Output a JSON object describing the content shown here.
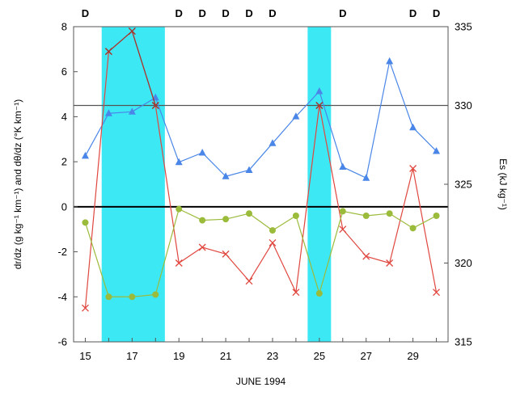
{
  "chart_data": {
    "type": "line",
    "title": "",
    "xlabel": "JUNE 1994",
    "ylabel_left": "dr/dz (g kg⁻¹ km⁻¹) and dθ/dz (°K km⁻¹)",
    "ylabel_right": "Es (kJ kg⁻¹)",
    "x": [
      15,
      16,
      17,
      18,
      19,
      20,
      21,
      22,
      23,
      24,
      25,
      26,
      27,
      28,
      29,
      30
    ],
    "xlim": [
      14.5,
      30.5
    ],
    "x_ticks": [
      "15",
      "17",
      "19",
      "21",
      "23",
      "25",
      "27",
      "29"
    ],
    "ylim_left": [
      -6,
      8
    ],
    "y_ticks_left": [
      "-6",
      "-4",
      "-2",
      "0",
      "2",
      "4",
      "6",
      "8"
    ],
    "ylim_right": [
      315,
      335
    ],
    "y_ticks_right": [
      "315",
      "320",
      "325",
      "330",
      "335"
    ],
    "grid": false,
    "shaded_regions": [
      {
        "from": 15.7,
        "to": 18.4,
        "color": "#3de8f5"
      },
      {
        "from": 24.5,
        "to": 25.5,
        "color": "#3de8f5"
      }
    ],
    "reference_lines": [
      {
        "axis": "left",
        "value": 0,
        "color": "#000000"
      },
      {
        "axis": "right",
        "value": 330,
        "color": "#555555"
      }
    ],
    "d_markers": {
      "label": "D",
      "x": [
        15,
        19,
        20,
        21,
        22,
        23,
        26,
        29,
        30
      ]
    },
    "series": [
      {
        "axis": "right",
        "marker": "triangle",
        "color": "#4a86e8",
        "values": [
          326.8,
          329.5,
          329.6,
          330.5,
          326.4,
          327.0,
          325.5,
          325.9,
          327.6,
          329.3,
          330.9,
          326.1,
          325.4,
          332.8,
          328.6,
          327.1
        ]
      },
      {
        "axis": "left",
        "marker": "x",
        "color": "#e0473f",
        "values": [
          -4.5,
          6.9,
          7.8,
          4.5,
          -2.5,
          -1.8,
          -2.1,
          -3.3,
          -1.6,
          -3.8,
          4.5,
          -1.0,
          -2.2,
          -2.5,
          1.7,
          -3.8
        ]
      },
      {
        "axis": "left",
        "marker": "x",
        "color": "#a0362f",
        "values": [
          null,
          6.9,
          7.8,
          4.5,
          null,
          null,
          null,
          null,
          null,
          null,
          4.5,
          null,
          null,
          null,
          null,
          null
        ]
      },
      {
        "axis": "left",
        "marker": "circle",
        "color": "#9bbb3b",
        "values": [
          -0.7,
          -4.0,
          -4.0,
          -3.9,
          -0.1,
          -0.6,
          -0.55,
          -0.3,
          -1.05,
          -0.4,
          -3.85,
          -0.2,
          -0.4,
          -0.3,
          -0.95,
          -0.4
        ]
      }
    ]
  }
}
